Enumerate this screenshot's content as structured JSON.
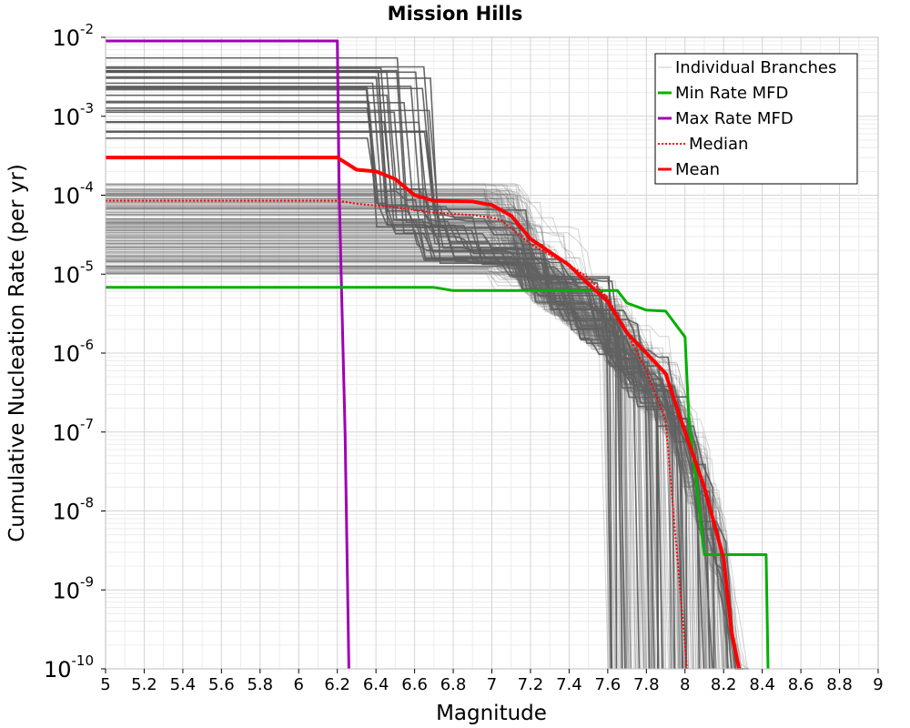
{
  "chart_data": {
    "type": "line",
    "title": "Mission Hills",
    "xlabel": "Magnitude",
    "ylabel": "Cumulative Nucleation Rate (per yr)",
    "xlim": [
      5,
      9
    ],
    "ylim": [
      1e-10,
      0.01
    ],
    "yscale": "log",
    "grid": true,
    "x_ticks": [
      "5",
      "5.2",
      "5.4",
      "5.6",
      "5.8",
      "6",
      "6.2",
      "6.4",
      "6.6",
      "6.8",
      "7",
      "7.2",
      "7.4",
      "7.6",
      "7.8",
      "8",
      "8.2",
      "8.4",
      "8.6",
      "8.8",
      "9"
    ],
    "y_tick_exponents": [
      "-2",
      "-3",
      "-4",
      "-5",
      "-6",
      "-7",
      "-8",
      "-9",
      "-10"
    ],
    "y_tick_base": "10",
    "legend_position": "top-right",
    "legend": [
      {
        "label": "Individual Branches",
        "color": "#c8c8c8",
        "style": "solid"
      },
      {
        "label": "Min Rate MFD",
        "color": "#00b000",
        "style": "solid"
      },
      {
        "label": "Max Rate MFD",
        "color": "#a000b4",
        "style": "solid"
      },
      {
        "label": "Median",
        "color": "#ff0000",
        "style": "dotted"
      },
      {
        "label": "Mean",
        "color": "#ff0000",
        "style": "solid"
      }
    ],
    "series": [
      {
        "name": "Min Rate MFD",
        "color": "#00b000",
        "x": [
          5.0,
          6.7,
          6.8,
          7.1,
          7.6,
          7.65,
          7.7,
          7.8,
          7.9,
          8.0,
          8.02,
          8.1,
          8.42,
          8.43
        ],
        "y": [
          6.8e-06,
          6.8e-06,
          6.2e-06,
          6.2e-06,
          6.2e-06,
          6.2e-06,
          4.3e-06,
          3.5e-06,
          3.4e-06,
          1.6e-06,
          1.5e-07,
          2.8e-09,
          2.8e-09,
          1e-10
        ]
      },
      {
        "name": "Max Rate MFD",
        "color": "#a000b4",
        "x": [
          5.0,
          6.2,
          6.21,
          6.22,
          6.24,
          6.26
        ],
        "y": [
          0.009,
          0.009,
          0.0001,
          1e-05,
          1e-07,
          1e-10
        ]
      },
      {
        "name": "Median",
        "color": "#ff0000",
        "x": [
          5.0,
          6.2,
          6.3,
          6.5,
          6.7,
          6.9,
          7.0,
          7.05,
          7.1,
          7.2,
          7.4,
          7.5,
          7.6,
          7.7,
          7.8,
          7.9,
          7.95,
          8.0,
          8.01
        ],
        "y": [
          8.5e-05,
          8.5e-05,
          7.8e-05,
          7e-05,
          6e-05,
          5.6e-05,
          5.2e-05,
          4.8e-05,
          3.8e-05,
          2.4e-05,
          1.3e-05,
          9e-06,
          5e-06,
          1.8e-06,
          6e-07,
          1.4e-07,
          5e-09,
          2e-10,
          1e-10
        ]
      },
      {
        "name": "Mean",
        "color": "#ff0000",
        "x": [
          5.0,
          6.2,
          6.3,
          6.4,
          6.5,
          6.6,
          6.7,
          6.9,
          7.0,
          7.1,
          7.2,
          7.4,
          7.5,
          7.6,
          7.7,
          7.8,
          7.9,
          8.0,
          8.1,
          8.2,
          8.24,
          8.28
        ],
        "y": [
          0.0003,
          0.0003,
          0.00021,
          0.0002,
          0.00016,
          0.0001,
          8.5e-05,
          8.3e-05,
          7.5e-05,
          5.5e-05,
          2.8e-05,
          1.3e-05,
          7.5e-06,
          4.5e-06,
          1.8e-06,
          1e-06,
          5.5e-07,
          1e-07,
          2e-08,
          2.5e-09,
          3e-10,
          1e-10
        ]
      }
    ]
  }
}
